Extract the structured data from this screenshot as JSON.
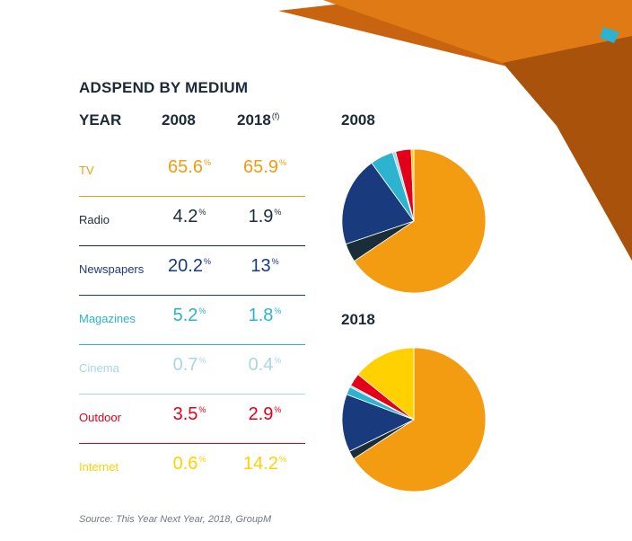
{
  "colors": {
    "tv": "#F39C12",
    "radio": "#1C2D3A",
    "newspapers": "#1A3A7E",
    "magazines": "#2BB3CF",
    "cinema": "#A9D6E5",
    "outdoor": "#E3001B",
    "internet": "#FFD100"
  },
  "chart_data": {
    "type": "table",
    "title": "ADSPEND BY MEDIUM",
    "columns": [
      "YEAR",
      "2008",
      "2018"
    ],
    "column_note_2018": "(f)",
    "unit": "%",
    "rows": [
      {
        "medium": "TV",
        "v2008": "65.6",
        "v2018": "65.9"
      },
      {
        "medium": "Radio",
        "v2008": "4.2",
        "v2018": "1.9"
      },
      {
        "medium": "Newspapers",
        "v2008": "20.2",
        "v2018": "13"
      },
      {
        "medium": "Magazines",
        "v2008": "5.2",
        "v2018": "1.8"
      },
      {
        "medium": "Cinema",
        "v2008": "0.7",
        "v2018": "0.4"
      },
      {
        "medium": "Outdoor",
        "v2008": "3.5",
        "v2018": "2.9"
      },
      {
        "medium": "Internet",
        "v2008": "0.6",
        "v2018": "14.2"
      }
    ],
    "pies": [
      {
        "title": "2008",
        "type": "pie",
        "categories": [
          "TV",
          "Radio",
          "Newspapers",
          "Magazines",
          "Cinema",
          "Outdoor",
          "Internet"
        ],
        "values": [
          65.6,
          4.2,
          20.2,
          5.2,
          0.7,
          3.5,
          0.6
        ]
      },
      {
        "title": "2018",
        "type": "pie",
        "categories": [
          "TV",
          "Radio",
          "Newspapers",
          "Magazines",
          "Cinema",
          "Outdoor",
          "Internet"
        ],
        "values": [
          65.9,
          1.9,
          13,
          1.8,
          0.4,
          2.9,
          14.2
        ]
      }
    ],
    "source": "Source: This Year Next Year, 2018, GroupM"
  }
}
